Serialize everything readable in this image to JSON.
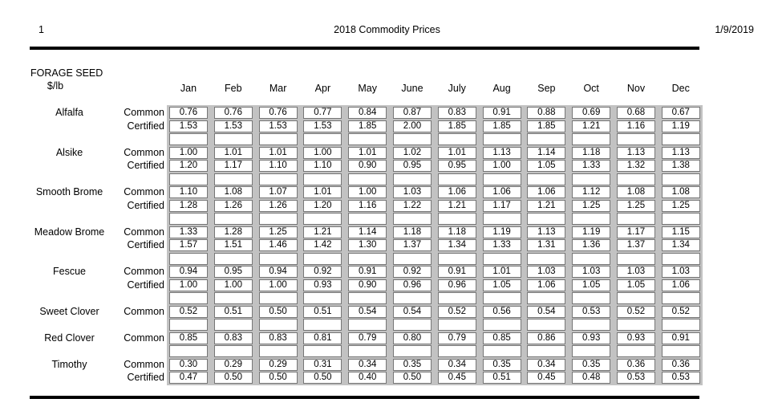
{
  "page": {
    "page_number": "1",
    "title": "2018 Commodity Prices",
    "date": "1/9/2019"
  },
  "section": {
    "title": "FORAGE SEED",
    "unit": "$/lb"
  },
  "table": {
    "months": [
      "Jan",
      "Feb",
      "Mar",
      "Apr",
      "May",
      "June",
      "July",
      "Aug",
      "Sep",
      "Oct",
      "Nov",
      "Dec"
    ],
    "groups": [
      {
        "commodity": "Alfalfa",
        "rows": [
          {
            "type": "Common",
            "values": [
              "0.76",
              "0.76",
              "0.76",
              "0.77",
              "0.84",
              "0.87",
              "0.83",
              "0.91",
              "0.88",
              "0.69",
              "0.68",
              "0.67"
            ]
          },
          {
            "type": "Certified",
            "values": [
              "1.53",
              "1.53",
              "1.53",
              "1.53",
              "1.85",
              "2.00",
              "1.85",
              "1.85",
              "1.85",
              "1.21",
              "1.16",
              "1.19"
            ]
          }
        ]
      },
      {
        "commodity": "Alsike",
        "rows": [
          {
            "type": "Common",
            "values": [
              "1.00",
              "1.01",
              "1.01",
              "1.00",
              "1.01",
              "1.02",
              "1.01",
              "1.13",
              "1.14",
              "1.18",
              "1.13",
              "1.13"
            ]
          },
          {
            "type": "Certified",
            "values": [
              "1.20",
              "1.17",
              "1.10",
              "1.10",
              "0.90",
              "0.95",
              "0.95",
              "1.00",
              "1.05",
              "1.33",
              "1.32",
              "1.38"
            ]
          }
        ]
      },
      {
        "commodity": "Smooth Brome",
        "rows": [
          {
            "type": "Common",
            "values": [
              "1.10",
              "1.08",
              "1.07",
              "1.01",
              "1.00",
              "1.03",
              "1.06",
              "1.06",
              "1.06",
              "1.12",
              "1.08",
              "1.08"
            ]
          },
          {
            "type": "Certified",
            "values": [
              "1.28",
              "1.26",
              "1.26",
              "1.20",
              "1.16",
              "1.22",
              "1.21",
              "1.17",
              "1.21",
              "1.25",
              "1.25",
              "1.25"
            ]
          }
        ]
      },
      {
        "commodity": "Meadow Brome",
        "rows": [
          {
            "type": "Common",
            "values": [
              "1.33",
              "1.28",
              "1.25",
              "1.21",
              "1.14",
              "1.18",
              "1.18",
              "1.19",
              "1.13",
              "1.19",
              "1.17",
              "1.15"
            ]
          },
          {
            "type": "Certified",
            "values": [
              "1.57",
              "1.51",
              "1.46",
              "1.42",
              "1.30",
              "1.37",
              "1.34",
              "1.33",
              "1.31",
              "1.36",
              "1.37",
              "1.34"
            ]
          }
        ]
      },
      {
        "commodity": "Fescue",
        "rows": [
          {
            "type": "Common",
            "values": [
              "0.94",
              "0.95",
              "0.94",
              "0.92",
              "0.91",
              "0.92",
              "0.91",
              "1.01",
              "1.03",
              "1.03",
              "1.03",
              "1.03"
            ]
          },
          {
            "type": "Certified",
            "values": [
              "1.00",
              "1.00",
              "1.00",
              "0.93",
              "0.90",
              "0.96",
              "0.96",
              "1.05",
              "1.06",
              "1.05",
              "1.05",
              "1.06"
            ]
          }
        ]
      },
      {
        "commodity": "Sweet Clover",
        "rows": [
          {
            "type": "Common",
            "values": [
              "0.52",
              "0.51",
              "0.50",
              "0.51",
              "0.54",
              "0.54",
              "0.52",
              "0.56",
              "0.54",
              "0.53",
              "0.52",
              "0.52"
            ]
          }
        ]
      },
      {
        "commodity": "Red Clover",
        "rows": [
          {
            "type": "Common",
            "values": [
              "0.85",
              "0.83",
              "0.83",
              "0.81",
              "0.79",
              "0.80",
              "0.79",
              "0.85",
              "0.86",
              "0.93",
              "0.93",
              "0.91"
            ]
          }
        ]
      },
      {
        "commodity": "Timothy",
        "rows": [
          {
            "type": "Common",
            "values": [
              "0.30",
              "0.29",
              "0.29",
              "0.31",
              "0.34",
              "0.35",
              "0.34",
              "0.35",
              "0.34",
              "0.35",
              "0.36",
              "0.36"
            ]
          },
          {
            "type": "Certified",
            "values": [
              "0.47",
              "0.50",
              "0.50",
              "0.50",
              "0.40",
              "0.50",
              "0.45",
              "0.51",
              "0.45",
              "0.48",
              "0.53",
              "0.53"
            ]
          }
        ]
      }
    ]
  },
  "colors": {
    "grid_background": "#c2c2c2",
    "cell_background": "#ffffff",
    "cell_border": "#767676",
    "rule": "#000000",
    "text": "#000000"
  }
}
